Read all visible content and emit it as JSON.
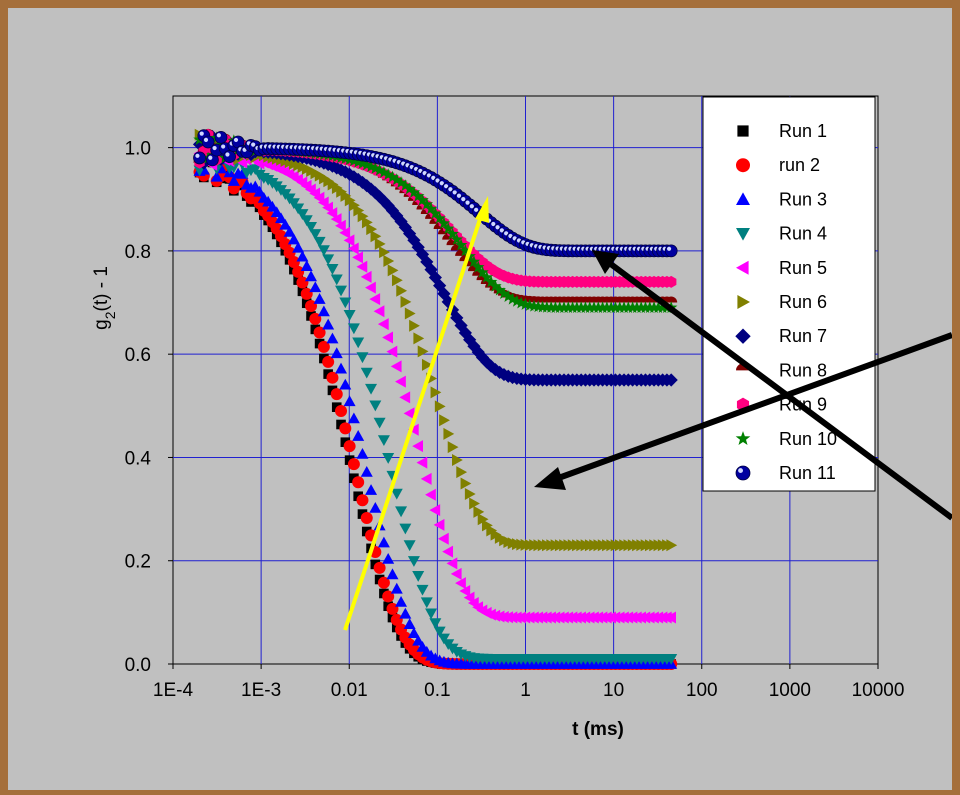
{
  "chart_data": {
    "type": "scatter",
    "x_scale": "log",
    "xlim": [
      0.0001,
      10000
    ],
    "ylim": [
      0.0,
      1.1
    ],
    "x_ticks": [
      "1E-4",
      "1E-3",
      "0.01",
      "0.1",
      "1",
      "10",
      "100",
      "1000",
      "10000"
    ],
    "y_ticks": [
      "0.0",
      "0.2",
      "0.4",
      "0.6",
      "0.8",
      "1.0"
    ],
    "xlabel": "t (ms)",
    "ylabel": "g2(t) - 1",
    "grid": true,
    "legend_position": "top-right",
    "series": [
      {
        "name": "Run 1",
        "marker": "square",
        "color": "#000000",
        "plateau": 0.0,
        "tau": 0.011
      },
      {
        "name": "run 2",
        "marker": "circle",
        "color": "#ff0000",
        "plateau": 0.0,
        "tau": 0.012
      },
      {
        "name": "Run 3",
        "marker": "triangle-up",
        "color": "#0000ff",
        "plateau": 0.0,
        "tau": 0.016
      },
      {
        "name": "Run 4",
        "marker": "triangle-down",
        "color": "#008080",
        "plateau": 0.01,
        "tau": 0.03
      },
      {
        "name": "Run 5",
        "marker": "triangle-left",
        "color": "#ff00ff",
        "plateau": 0.09,
        "tau": 0.06
      },
      {
        "name": "Run 6",
        "marker": "triangle-right",
        "color": "#808000",
        "plateau": 0.23,
        "tau": 0.1
      },
      {
        "name": "Run 7",
        "marker": "diamond",
        "color": "#000080",
        "plateau": 0.55,
        "tau": 0.12
      },
      {
        "name": "Run 8",
        "marker": "semicircle",
        "color": "#800000",
        "plateau": 0.7,
        "tau": 0.15
      },
      {
        "name": "Run 9",
        "marker": "hexagon",
        "color": "#ff0080",
        "plateau": 0.74,
        "tau": 0.15
      },
      {
        "name": "Run 10",
        "marker": "star",
        "color": "#008000",
        "plateau": 0.69,
        "tau": 0.2
      },
      {
        "name": "Run 11",
        "marker": "ball",
        "color": "#0000a0",
        "plateau": 0.8,
        "tau": 0.3
      }
    ]
  }
}
